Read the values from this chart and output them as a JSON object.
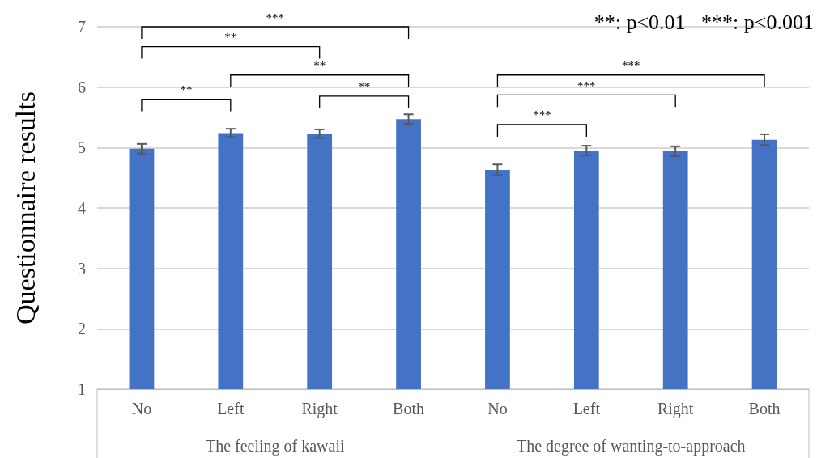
{
  "chart_data": {
    "type": "bar",
    "ylabel": "Questionnaire results",
    "categories": [
      "No",
      "Left",
      "Right",
      "Both",
      "No",
      "Left",
      "Right",
      "Both"
    ],
    "values": [
      4.98,
      5.24,
      5.23,
      5.47,
      4.63,
      4.95,
      4.94,
      5.13
    ],
    "errors": [
      0.08,
      0.07,
      0.07,
      0.08,
      0.09,
      0.08,
      0.08,
      0.09
    ],
    "color": "#4472c4",
    "ylim": [
      1,
      7
    ],
    "yticks": [
      1,
      2,
      3,
      4,
      5,
      6,
      7
    ],
    "grid": "y",
    "annotations": [
      "***",
      "**",
      "**",
      "**",
      "**",
      "***",
      "***",
      "***",
      "**: p<0.01   ***: p<0.001",
      "The feeling of kawaii",
      "The degree of wanting-to-approach"
    ]
  }
}
